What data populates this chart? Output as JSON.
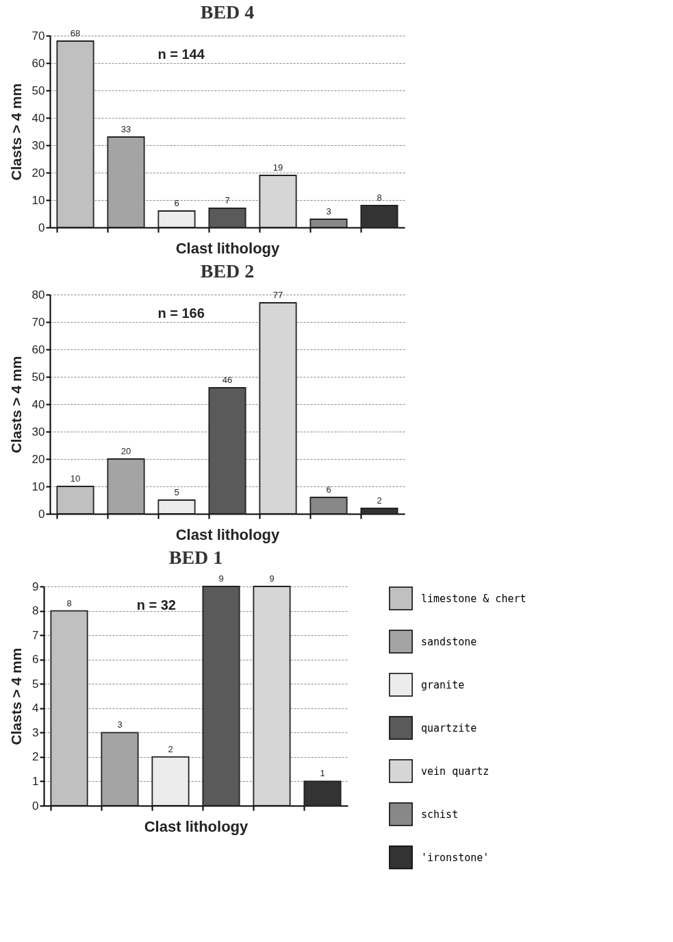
{
  "chart_data": [
    {
      "type": "bar",
      "title": "BED 4",
      "xlabel": "Clast lithology",
      "ylabel": "Clasts > 4 mm",
      "annotations": [
        "n = 144"
      ],
      "categories": [
        null,
        null,
        null,
        null,
        null,
        null,
        null
      ],
      "values": [
        68,
        33,
        6,
        7,
        19,
        3,
        8
      ],
      "colors": [
        "#c0c0c0",
        "#a4a4a4",
        "#ececec",
        "#5a5a5a",
        "#d6d6d6",
        "#888888",
        "#333333"
      ],
      "ylim": [
        0,
        70
      ],
      "yticks": [
        0,
        10,
        20,
        30,
        40,
        50,
        60,
        70
      ],
      "grid": "y",
      "data_labels": true,
      "tick_labels": "y"
    },
    {
      "type": "bar",
      "title": "BED 2",
      "xlabel": "Clast lithology",
      "ylabel": "Clasts > 4 mm",
      "annotations": [
        "n = 166"
      ],
      "categories": [
        null,
        null,
        null,
        null,
        null,
        null,
        null
      ],
      "values": [
        10,
        20,
        5,
        46,
        77,
        6,
        2
      ],
      "colors": [
        "#c0c0c0",
        "#a4a4a4",
        "#ececec",
        "#5a5a5a",
        "#d6d6d6",
        "#888888",
        "#333333"
      ],
      "ylim": [
        0,
        80
      ],
      "yticks": [
        0,
        10,
        20,
        30,
        40,
        50,
        60,
        70,
        80
      ],
      "grid": "y",
      "data_labels": true,
      "tick_labels": "y"
    },
    {
      "type": "bar",
      "title": "BED 1",
      "xlabel": "Clast lithology",
      "ylabel": "Clasts > 4 mm",
      "annotations": [
        "n = 32"
      ],
      "categories": [
        null,
        null,
        null,
        null,
        null,
        null
      ],
      "series": [
        {
          "name": "limestone & chert",
          "color": "#c0c0c0",
          "values": [
            8,
            null,
            null,
            null,
            null,
            null
          ]
        },
        {
          "name": "sandstone",
          "color": "#a4a4a4",
          "values": [
            null,
            3,
            null,
            null,
            null,
            null
          ]
        },
        {
          "name": "granite",
          "color": "#ececec",
          "values": [
            null,
            null,
            2,
            null,
            null,
            null
          ]
        },
        {
          "name": "quartzite",
          "color": "#5a5a5a",
          "values": [
            null,
            null,
            null,
            9,
            null,
            null
          ]
        },
        {
          "name": "vein quartz",
          "color": "#d6d6d6",
          "values": [
            null,
            null,
            null,
            null,
            9,
            null
          ]
        },
        {
          "name": "schist",
          "color": "#888888",
          "values": [
            null,
            null,
            null,
            null,
            null,
            null
          ]
        },
        {
          "name": "'ironstone'",
          "color": "#333333",
          "values": [
            null,
            null,
            null,
            null,
            null,
            1
          ]
        }
      ],
      "ylim": [
        0,
        9
      ],
      "yticks": [
        0,
        1,
        2,
        3,
        4,
        5,
        6,
        7,
        8,
        9
      ],
      "grid": "y",
      "data_labels": true,
      "tick_labels": "y",
      "legend": "right"
    }
  ]
}
